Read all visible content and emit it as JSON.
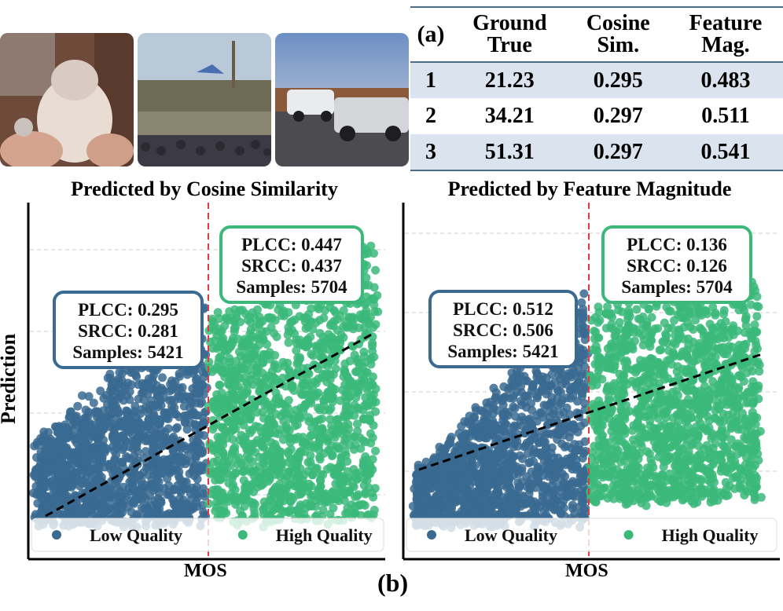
{
  "table": {
    "corner_label": "(a)",
    "headers": [
      [
        "Ground",
        "True"
      ],
      [
        "Cosine",
        "Sim."
      ],
      [
        "Feature",
        "Mag."
      ]
    ],
    "rows": [
      {
        "index": "1",
        "ground_true": "21.23",
        "cosine_sim": "0.295",
        "feature_mag": "0.483"
      },
      {
        "index": "2",
        "ground_true": "34.21",
        "cosine_sim": "0.297",
        "feature_mag": "0.511"
      },
      {
        "index": "3",
        "ground_true": "51.31",
        "cosine_sim": "0.297",
        "feature_mag": "0.541"
      }
    ]
  },
  "figure_label": "(b)",
  "y_axis_label": "Prediction",
  "chart_data": [
    {
      "type": "scatter",
      "title": "Predicted by Cosine Similarity",
      "xlabel": "MOS",
      "ylabel": "Prediction",
      "grid": "horizontal dashed",
      "threshold_line": {
        "color": "#e0393e",
        "style": "dashed"
      },
      "regression_line": {
        "color": "#000000",
        "style": "dashed"
      },
      "legend": {
        "placement": "bottom",
        "entries": [
          "Low Quality",
          "High Quality"
        ]
      },
      "series": [
        {
          "name": "Low Quality",
          "color": "#3a6a91",
          "stats": {
            "plcc": "PLCC: 0.295",
            "srcc": "SRCC: 0.281",
            "samples": "Samples: 5421"
          }
        },
        {
          "name": "High Quality",
          "color": "#3bb87a",
          "stats": {
            "plcc": "PLCC: 0.447",
            "srcc": "SRCC: 0.437",
            "samples": "Samples: 5704"
          }
        }
      ]
    },
    {
      "type": "scatter",
      "title": "Predicted by Feature Magnitude",
      "xlabel": "MOS",
      "ylabel": "Prediction",
      "grid": "horizontal dashed",
      "threshold_line": {
        "color": "#e0393e",
        "style": "dashed"
      },
      "regression_line": {
        "color": "#000000",
        "style": "dashed"
      },
      "legend": {
        "placement": "bottom",
        "entries": [
          "Low Quality",
          "High Quality"
        ]
      },
      "series": [
        {
          "name": "Low Quality",
          "color": "#3a6a91",
          "stats": {
            "plcc": "PLCC: 0.512",
            "srcc": "SRCC: 0.506",
            "samples": "Samples: 5421"
          }
        },
        {
          "name": "High Quality",
          "color": "#3bb87a",
          "stats": {
            "plcc": "PLCC: 0.136",
            "srcc": "SRCC: 0.126",
            "samples": "Samples: 5704"
          }
        }
      ]
    }
  ]
}
